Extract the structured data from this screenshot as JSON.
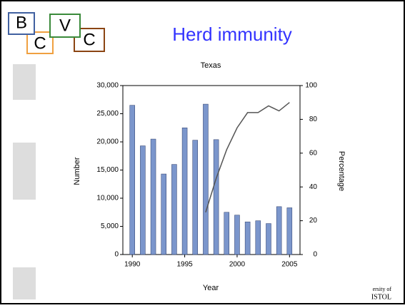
{
  "logo": [
    "B",
    "C",
    "V",
    "C"
  ],
  "slide_title": "Herd immunity",
  "footer": [
    "ersity of",
    "ISTOL"
  ],
  "chart_data": {
    "type": "bar",
    "title": "Texas",
    "xlabel": "Year",
    "ylabel": "Number",
    "y2label": "Percentage",
    "x": [
      1990,
      1991,
      1992,
      1993,
      1994,
      1995,
      1996,
      1997,
      1998,
      1999,
      2000,
      2001,
      2002,
      2003,
      2004,
      2005
    ],
    "series": [
      {
        "type": "bar",
        "color": "#7b96cc",
        "values": [
          26500,
          19300,
          20500,
          14300,
          16000,
          22500,
          20300,
          26700,
          20400,
          7500,
          7000,
          5800,
          6000,
          5500,
          8500,
          8300
        ]
      },
      {
        "type": "line",
        "axis": "y2",
        "color": "#555555",
        "values": [
          null,
          null,
          null,
          null,
          null,
          null,
          null,
          25,
          45,
          62,
          75,
          84,
          84,
          88,
          85,
          90
        ]
      }
    ],
    "xlim": [
      1989.1,
      2006
    ],
    "xticks": [
      1990,
      1995,
      2000,
      2005
    ],
    "ylim": [
      0,
      30000
    ],
    "yticks": [
      0,
      {
        "value": 5000,
        "label": "5,000"
      },
      {
        "value": 10000,
        "label": "10,000"
      },
      {
        "value": 15000,
        "label": "15,000"
      },
      {
        "value": 20000,
        "label": "20,000"
      },
      {
        "value": 25000,
        "label": "25,000"
      },
      {
        "value": 30000,
        "label": "30,000"
      }
    ],
    "y2lim": [
      0,
      100
    ],
    "y2ticks": [
      0,
      20,
      40,
      60,
      80,
      100
    ]
  }
}
